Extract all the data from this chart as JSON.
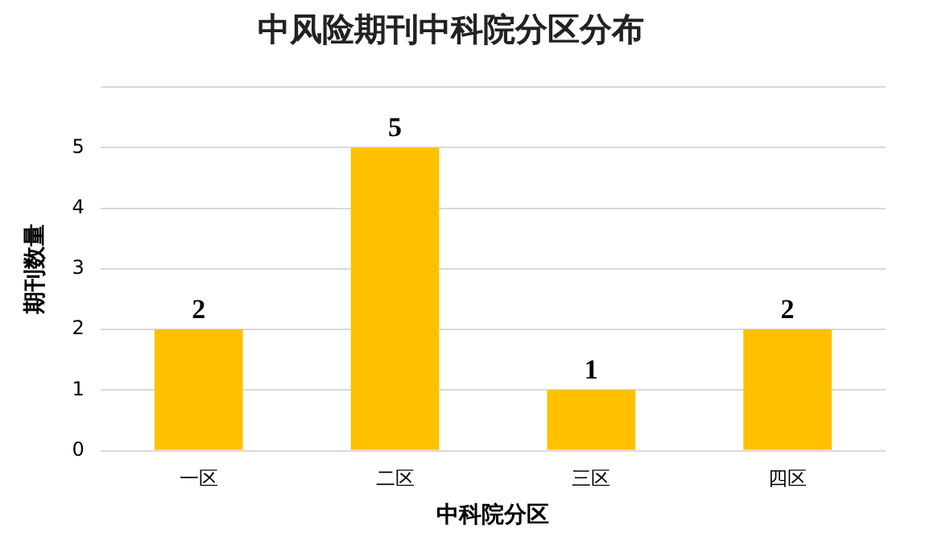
{
  "chart_data": {
    "type": "bar",
    "title": "中风险期刊中科院分区分布",
    "xlabel": "中科院分区",
    "ylabel": "期刊数量",
    "categories": [
      "一区",
      "二区",
      "三区",
      "四区"
    ],
    "values": [
      2,
      5,
      1,
      2
    ],
    "color": "#ffc000",
    "ylim": [
      0,
      6
    ],
    "yticks": [
      0,
      1,
      2,
      3,
      4,
      5,
      {
        "value": 6,
        "label": null
      }
    ],
    "grid": "y",
    "data_labels": true
  }
}
